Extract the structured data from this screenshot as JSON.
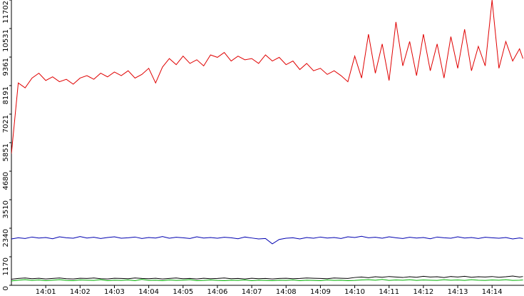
{
  "chart_data": {
    "type": "line",
    "x": [
      0,
      0.2,
      0.4,
      0.6,
      0.8,
      1,
      1.2,
      1.4,
      1.6,
      1.8,
      2,
      2.2,
      2.4,
      2.6,
      2.8,
      3,
      3.2,
      3.4,
      3.6,
      3.8,
      4,
      4.2,
      4.4,
      4.6,
      4.8,
      5,
      5.2,
      5.4,
      5.6,
      5.8,
      6,
      6.2,
      6.4,
      6.6,
      6.8,
      7,
      7.2,
      7.4,
      7.6,
      7.8,
      8,
      8.2,
      8.4,
      8.6,
      8.8,
      9,
      9.2,
      9.4,
      9.6,
      9.8,
      10,
      10.2,
      10.4,
      10.6,
      10.8,
      11,
      11.2,
      11.4,
      11.6,
      11.8,
      12,
      12.2,
      12.4,
      12.6,
      12.8,
      13,
      13.2,
      13.4,
      13.6,
      13.8,
      14,
      14.2,
      14.4,
      14.6,
      14.8,
      14.9
    ],
    "series": [
      {
        "color": "#e00000",
        "values": [
          5400,
          8300,
          8100,
          8500,
          8700,
          8400,
          8550,
          8350,
          8450,
          8250,
          8500,
          8600,
          8450,
          8700,
          8550,
          8750,
          8600,
          8800,
          8500,
          8650,
          8900,
          8300,
          8950,
          9300,
          9050,
          9400,
          9100,
          9250,
          9000,
          9450,
          9350,
          9550,
          9200,
          9400,
          9250,
          9300,
          9100,
          9450,
          9200,
          9350,
          9050,
          9200,
          8850,
          9100,
          8800,
          8900,
          8650,
          8800,
          8600,
          8350,
          9400,
          8500,
          10300,
          8700,
          9900,
          8400,
          10800,
          9000,
          10000,
          8600,
          10300,
          8800,
          9900,
          8500,
          10200,
          8900,
          10500,
          8800,
          9800,
          9000,
          11700,
          8900,
          10000,
          9200,
          9700,
          9300
        ]
      },
      {
        "color": "#0000b0",
        "values": [
          1900,
          1950,
          1920,
          1980,
          1940,
          1960,
          1910,
          1990,
          1950,
          1930,
          2000,
          1940,
          1970,
          1920,
          1960,
          1990,
          1930,
          1950,
          1980,
          1920,
          1960,
          1940,
          2000,
          1930,
          1970,
          1950,
          1920,
          1990,
          1940,
          1960,
          1930,
          1970,
          1950,
          1910,
          1980,
          1940,
          1900,
          1920,
          1700,
          1880,
          1930,
          1950,
          1900,
          1960,
          1930,
          1980,
          1940,
          1960,
          1920,
          1990,
          1960,
          2010,
          1950,
          1970,
          1930,
          1990,
          1950,
          1920,
          1970,
          1940,
          1960,
          1910,
          1980,
          1950,
          1930,
          1990,
          1940,
          1960,
          1920,
          1970,
          1950,
          1930,
          1960,
          1900,
          1940,
          1920
        ]
      },
      {
        "color": "#000000",
        "values": [
          250,
          280,
          300,
          270,
          290,
          260,
          280,
          300,
          270,
          260,
          290,
          280,
          300,
          270,
          260,
          290,
          280,
          270,
          300,
          280,
          270,
          290,
          260,
          280,
          300,
          270,
          280,
          260,
          290,
          270,
          280,
          300,
          270,
          280,
          260,
          290,
          270,
          280,
          260,
          280,
          290,
          270,
          280,
          300,
          290,
          280,
          270,
          300,
          290,
          280,
          320,
          340,
          310,
          350,
          330,
          360,
          340,
          320,
          350,
          330,
          370,
          340,
          350,
          320,
          360,
          340,
          370,
          330,
          350,
          340,
          360,
          330,
          350,
          380,
          340,
          360
        ]
      },
      {
        "color": "#00b000",
        "values": [
          180,
          210,
          230,
          200,
          220,
          190,
          210,
          230,
          200,
          190,
          220,
          210,
          200,
          230,
          190,
          210,
          200,
          220,
          190,
          240,
          200,
          210,
          190,
          220,
          200,
          210,
          230,
          190,
          200,
          220,
          200,
          190,
          210,
          200,
          220,
          190,
          210,
          200,
          190,
          210,
          200,
          220,
          190,
          210,
          200,
          190,
          220,
          200,
          210,
          190,
          200,
          220,
          230,
          210,
          240,
          200,
          220,
          210,
          230,
          200,
          220,
          210,
          200,
          230,
          210,
          220,
          200,
          230,
          210,
          200,
          220,
          210,
          230,
          200,
          210,
          220
        ]
      }
    ],
    "xlim": [
      0,
      14.93
    ],
    "xticks": [
      {
        "value": 1,
        "label": "14:01"
      },
      {
        "value": 2,
        "label": "14:02"
      },
      {
        "value": 3,
        "label": "14:03"
      },
      {
        "value": 4,
        "label": "14:04"
      },
      {
        "value": 5,
        "label": "14:05"
      },
      {
        "value": 6,
        "label": "14:06"
      },
      {
        "value": 7,
        "label": "14:07"
      },
      {
        "value": 8,
        "label": "14:08"
      },
      {
        "value": 9,
        "label": "14:09"
      },
      {
        "value": 10,
        "label": "14:10"
      },
      {
        "value": 11,
        "label": "14:11"
      },
      {
        "value": 12,
        "label": "14:12"
      },
      {
        "value": 13,
        "label": "14:13"
      },
      {
        "value": 14,
        "label": "14:14"
      }
    ],
    "ylim": [
      0,
      11702
    ],
    "yticks": [
      0,
      1170,
      2340,
      3510,
      4680,
      5851,
      7021,
      8191,
      9361,
      10531,
      11702
    ]
  }
}
